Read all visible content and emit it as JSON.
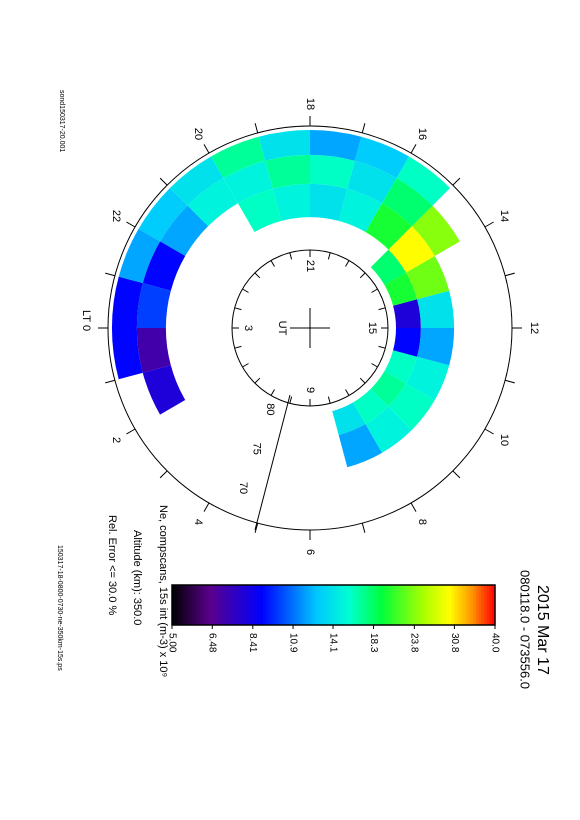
{
  "chart_data": {
    "type": "polar-cells",
    "title": "2015 Mar 17",
    "subtitle": "080118.0 - 073556.0",
    "source_file": "sond150317-20.001",
    "output_file": "150317-18-0800-0730-ne-350km-15s.ps",
    "colorbar_label": "Ne, compscans, 15s int (m-3) x 10⁹",
    "altitude_label": "Altitude (km): 350.0",
    "error_label": "Rel. Error <= 30.0 %",
    "lt_title": "LT",
    "lt_labels": [
      0,
      2,
      4,
      6,
      8,
      10,
      12,
      14,
      16,
      18,
      20,
      22
    ],
    "ut_title": "UT",
    "ut_labels": [
      3,
      9,
      15,
      21
    ],
    "lat_labels": [
      80,
      75,
      70
    ],
    "lt_bins": [
      0,
      1,
      2,
      3,
      4,
      5,
      6,
      7,
      8,
      9,
      10,
      11,
      12,
      13,
      14,
      15,
      16,
      17,
      18,
      19,
      20,
      21,
      22,
      23,
      24
    ],
    "lat_bins": [
      80,
      77,
      73,
      69.5,
      66.5
    ],
    "values": [
      [
        null,
        null,
        7,
        9
      ],
      [
        null,
        null,
        8,
        null
      ],
      [
        null,
        null,
        null,
        null
      ],
      [
        null,
        null,
        null,
        null
      ],
      [
        null,
        null,
        null,
        null
      ],
      [
        null,
        null,
        null,
        null
      ],
      [
        null,
        null,
        null,
        null
      ],
      [
        14,
        12,
        null,
        null
      ],
      [
        16,
        15,
        null,
        null
      ],
      [
        17,
        16,
        null,
        null
      ],
      [
        16,
        15,
        null,
        null
      ],
      [
        9,
        12,
        null,
        null
      ],
      [
        8,
        14,
        null,
        null
      ],
      [
        20,
        23,
        null,
        null
      ],
      [
        18,
        30,
        24,
        null
      ],
      [
        null,
        20,
        18,
        16
      ],
      [
        null,
        15,
        14,
        13
      ],
      [
        null,
        14,
        16,
        12
      ],
      [
        null,
        15,
        17,
        14
      ],
      [
        null,
        16,
        15,
        17
      ],
      [
        null,
        null,
        15,
        14
      ],
      [
        null,
        null,
        12,
        13
      ],
      [
        null,
        null,
        9,
        12
      ],
      [
        null,
        null,
        10,
        9
      ]
    ],
    "colorbar": {
      "range": [
        5,
        40
      ],
      "log": true,
      "ticks": [
        {
          "value": 5,
          "label": "5.00"
        },
        6.48,
        8.41,
        10.9,
        14.1,
        18.3,
        23.8,
        30.8,
        {
          "value": 40,
          "label": "40.0"
        }
      ]
    }
  }
}
